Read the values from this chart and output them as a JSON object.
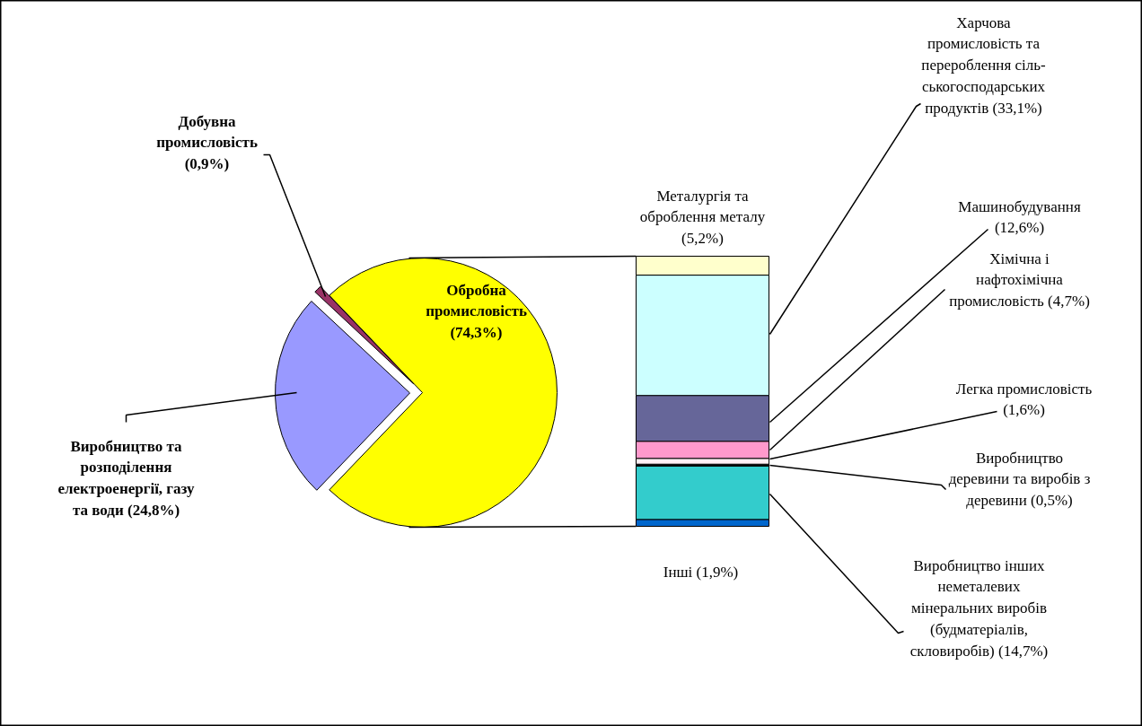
{
  "chart_data": [
    {
      "type": "pie",
      "categories": [
        "Обробна\nпромисловість\n(74,3%)",
        "Добувна\nпромисловість\n(0,9%)",
        "Виробництво та\nрозподілення\nелектроенергії, газу\nта води (24,8%)"
      ],
      "values": [
        74.3,
        0.9,
        24.8
      ],
      "colors": [
        "#ffff00",
        "#993366",
        "#9999ff"
      ]
    },
    {
      "type": "bar",
      "stacked": true,
      "categories": [
        null
      ],
      "series": [
        {
          "name": "Інші",
          "color": "#0066cc",
          "values": [
            1.9
          ],
          "value_labels": [
            "(1,9%)"
          ]
        },
        {
          "name": "Виробництво інших\nнеметалевих\nмінеральних виробів\n(будматеріалів,\nскловиробів)",
          "color": "#33cccc",
          "values": [
            14.7
          ],
          "value_labels": [
            "(14,7%)"
          ]
        },
        {
          "name": "Виробництво\nдеревини та виробів з\nдеревини",
          "color": "#000000",
          "values": [
            0.5
          ],
          "value_labels": [
            "(0,5%)"
          ]
        },
        {
          "name": "Легка промисловість",
          "color": "#fff0f5",
          "values": [
            1.6
          ],
          "value_labels": [
            "(1,6%)"
          ]
        },
        {
          "name": "Хімічна і\nнафтохімічна\nпромисловість",
          "color": "#ff99cc",
          "values": [
            4.7
          ],
          "value_labels": [
            "(4,7%)"
          ]
        },
        {
          "name": "Машинобудування",
          "color": "#666699",
          "values": [
            12.6
          ],
          "value_labels": [
            "(12,6%)"
          ]
        },
        {
          "name": "Харчова\nпромисловість та\nперероблення сіль-\nськогосподарських\nпродуктів",
          "color": "#ccffff",
          "values": [
            33.1
          ],
          "value_labels": [
            "(33,1%)"
          ]
        },
        {
          "name": "Металургія та\nоброблення металу",
          "color": "#ffffcc",
          "values": [
            5.2
          ],
          "value_labels": [
            "(5,2%)"
          ]
        }
      ]
    }
  ]
}
